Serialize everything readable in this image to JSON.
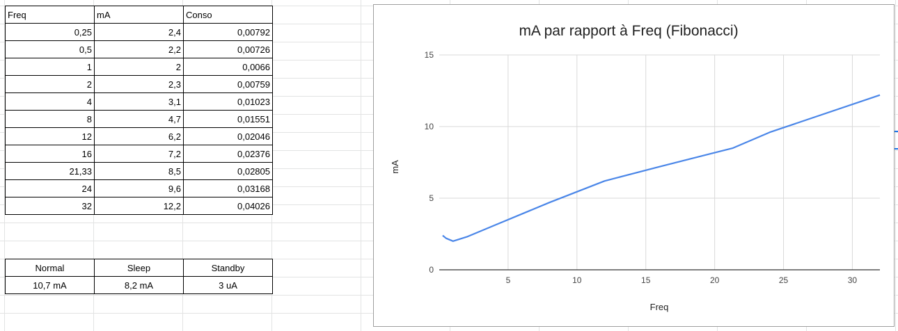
{
  "table": {
    "headers": [
      "Freq",
      "mA",
      "Conso"
    ],
    "rows": [
      [
        "0,25",
        "2,4",
        "0,00792"
      ],
      [
        "0,5",
        "2,2",
        "0,00726"
      ],
      [
        "1",
        "2",
        "0,0066"
      ],
      [
        "2",
        "2,3",
        "0,00759"
      ],
      [
        "4",
        "3,1",
        "0,01023"
      ],
      [
        "8",
        "4,7",
        "0,01551"
      ],
      [
        "12",
        "6,2",
        "0,02046"
      ],
      [
        "16",
        "7,2",
        "0,02376"
      ],
      [
        "21,33",
        "8,5",
        "0,02805"
      ],
      [
        "24",
        "9,6",
        "0,03168"
      ],
      [
        "32",
        "12,2",
        "0,04026"
      ]
    ]
  },
  "modes": {
    "headers": [
      "Normal",
      "Sleep",
      "Standby"
    ],
    "values": [
      "10,7 mA",
      "8,2 mA",
      "3 uA"
    ]
  },
  "chart_data": {
    "type": "line",
    "title": "mA par rapport à Freq (Fibonacci)",
    "xlabel": "Freq",
    "ylabel": "mA",
    "x": [
      0.25,
      0.5,
      1,
      2,
      4,
      8,
      12,
      16,
      21.33,
      24,
      32
    ],
    "series": [
      {
        "values": [
          2.4,
          2.2,
          2,
          2.3,
          3.1,
          4.7,
          6.2,
          7.2,
          8.5,
          9.6,
          12.2
        ],
        "color": "#4a86e8"
      }
    ],
    "xlim": [
      0,
      32
    ],
    "ylim": [
      0,
      15
    ],
    "xticks": [
      "5",
      "10",
      "15",
      "20",
      "25",
      "30"
    ],
    "yticks": [
      "0",
      "5",
      "10",
      "15"
    ],
    "grid": true,
    "legend": "none"
  }
}
